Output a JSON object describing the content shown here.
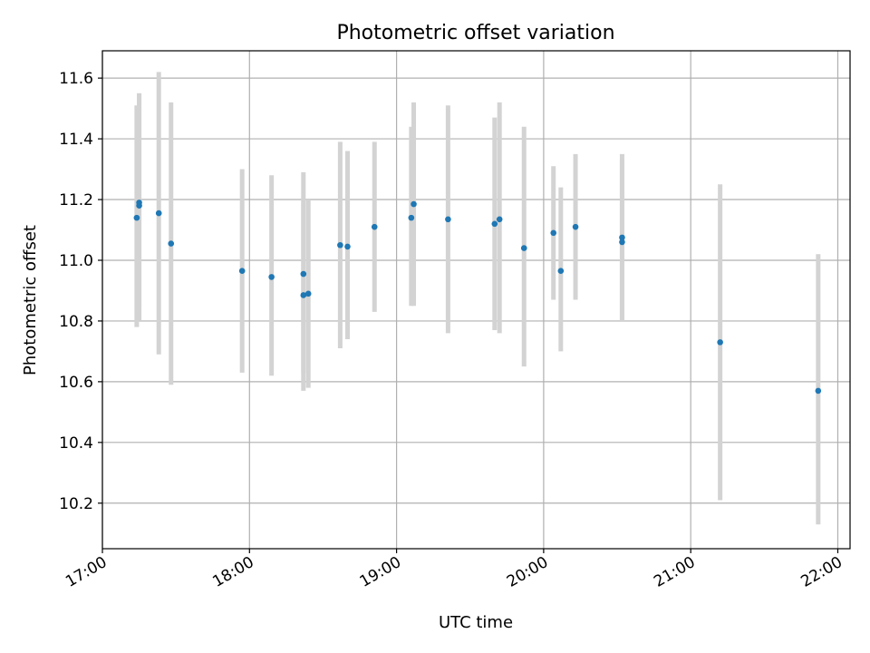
{
  "chart_data": {
    "type": "scatter",
    "title": "Photometric offset variation",
    "xlabel": "UTC time",
    "ylabel": "Photometric offset",
    "x_ticks": [
      "17:00",
      "18:00",
      "19:00",
      "20:00",
      "21:00",
      "22:00"
    ],
    "y_ticks": [
      "10.2",
      "10.4",
      "10.6",
      "10.8",
      "11.0",
      "11.2",
      "11.4",
      "11.6"
    ],
    "xlim": [
      "17:00",
      "22:05"
    ],
    "ylim": [
      10.05,
      11.69
    ],
    "grid": true,
    "marker_color": "#1f77b4",
    "errorbar_color": "#d3d3d3",
    "points": [
      {
        "t": "17:14",
        "y": 11.14,
        "lo": 10.78,
        "hi": 11.51
      },
      {
        "t": "17:15",
        "y": 11.18,
        "lo": 10.8,
        "hi": 11.55
      },
      {
        "t": "17:15",
        "y": 11.19,
        "lo": 10.84,
        "hi": 11.55
      },
      {
        "t": "17:23",
        "y": 11.155,
        "lo": 10.69,
        "hi": 11.62
      },
      {
        "t": "17:28",
        "y": 11.055,
        "lo": 10.59,
        "hi": 11.52
      },
      {
        "t": "17:57",
        "y": 10.965,
        "lo": 10.63,
        "hi": 11.3
      },
      {
        "t": "18:09",
        "y": 10.945,
        "lo": 10.62,
        "hi": 11.28
      },
      {
        "t": "18:22",
        "y": 10.955,
        "lo": 10.63,
        "hi": 11.29
      },
      {
        "t": "18:22",
        "y": 10.885,
        "lo": 10.57,
        "hi": 11.2
      },
      {
        "t": "18:24",
        "y": 10.89,
        "lo": 10.58,
        "hi": 11.2
      },
      {
        "t": "18:37",
        "y": 11.05,
        "lo": 10.71,
        "hi": 11.39
      },
      {
        "t": "18:40",
        "y": 11.045,
        "lo": 10.74,
        "hi": 11.36
      },
      {
        "t": "18:51",
        "y": 11.11,
        "lo": 10.83,
        "hi": 11.39
      },
      {
        "t": "19:06",
        "y": 11.14,
        "lo": 10.85,
        "hi": 11.44
      },
      {
        "t": "19:07",
        "y": 11.185,
        "lo": 10.85,
        "hi": 11.52
      },
      {
        "t": "19:21",
        "y": 11.135,
        "lo": 10.76,
        "hi": 11.51
      },
      {
        "t": "19:40",
        "y": 11.12,
        "lo": 10.77,
        "hi": 11.47
      },
      {
        "t": "19:42",
        "y": 11.135,
        "lo": 10.76,
        "hi": 11.52
      },
      {
        "t": "19:52",
        "y": 11.04,
        "lo": 10.65,
        "hi": 11.44
      },
      {
        "t": "20:04",
        "y": 11.09,
        "lo": 10.87,
        "hi": 11.31
      },
      {
        "t": "20:07",
        "y": 10.965,
        "lo": 10.7,
        "hi": 11.24
      },
      {
        "t": "20:13",
        "y": 11.11,
        "lo": 10.87,
        "hi": 11.35
      },
      {
        "t": "20:32",
        "y": 11.075,
        "lo": 10.8,
        "hi": 11.35
      },
      {
        "t": "20:32",
        "y": 11.06,
        "lo": 10.8,
        "hi": 11.33
      },
      {
        "t": "21:12",
        "y": 10.73,
        "lo": 10.21,
        "hi": 11.25
      },
      {
        "t": "21:52",
        "y": 10.57,
        "lo": 10.13,
        "hi": 11.02
      }
    ]
  }
}
